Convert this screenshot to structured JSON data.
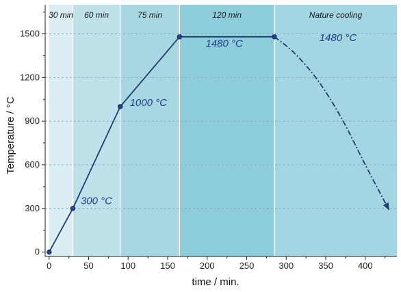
{
  "chart_data": {
    "type": "line",
    "xlabel": "time / min.",
    "ylabel": "Temperature / °C",
    "xlim": [
      -5,
      440
    ],
    "ylim": [
      -30,
      1700
    ],
    "x_ticks": [
      0,
      50,
      100,
      150,
      200,
      250,
      300,
      350,
      400
    ],
    "y_ticks": [
      0,
      300,
      600,
      900,
      1200,
      1500
    ],
    "grid": "horizontal-dashed",
    "stages": [
      {
        "label": "30 min",
        "x_start": 0,
        "x_end": 30,
        "color": "#dbeef3"
      },
      {
        "label": "60 min",
        "x_start": 30,
        "x_end": 90,
        "color": "#bfe1ea"
      },
      {
        "label": "75 min",
        "x_start": 90,
        "x_end": 165,
        "color": "#a8d7e2"
      },
      {
        "label": "120 min",
        "x_start": 165,
        "x_end": 285,
        "color": "#8ecddc"
      },
      {
        "label": "Nature cooling",
        "x_start": 285,
        "x_end": 440,
        "color": "#a3d6e2"
      }
    ],
    "stage_separators": [
      30,
      90,
      165,
      285
    ],
    "heating_series": {
      "x": [
        0,
        30,
        90,
        165,
        285
      ],
      "y": [
        0,
        300,
        1000,
        1480,
        1480
      ]
    },
    "cooling_series": {
      "x": [
        285,
        310,
        340,
        370,
        400,
        430
      ],
      "y": [
        1480,
        1370,
        1180,
        920,
        600,
        290
      ]
    },
    "annotations": [
      {
        "text": "300 °C",
        "x": 40,
        "y": 330
      },
      {
        "text": "1000 °C",
        "x": 102,
        "y": 1005
      },
      {
        "text": "1480 °C",
        "x": 198,
        "y": 1410
      },
      {
        "text": "1480 °C",
        "x": 342,
        "y": 1450
      }
    ],
    "colors": {
      "line": "#1f3b70",
      "marker": "#2a3f8f",
      "annotation": "#1f3b8c",
      "separator": "#ffffff",
      "grid": "#7fa9b5"
    }
  }
}
